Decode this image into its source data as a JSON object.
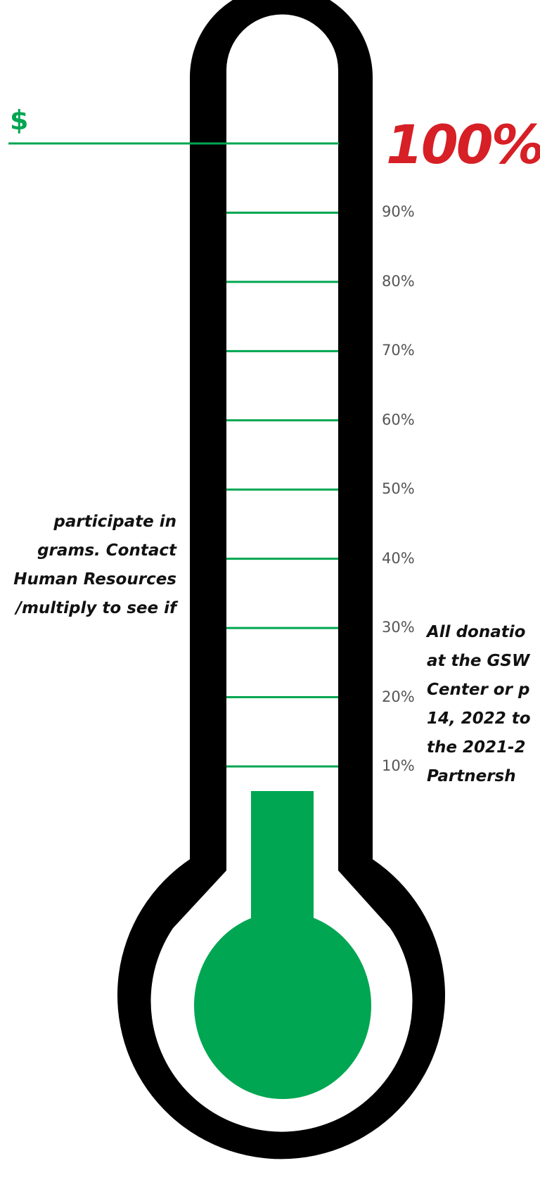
{
  "goal": {
    "symbol": "$",
    "percent_label": "100%"
  },
  "progress_fraction": 0.0,
  "ticks": [
    {
      "label": "90%",
      "value": 90
    },
    {
      "label": "80%",
      "value": 80
    },
    {
      "label": "70%",
      "value": 70
    },
    {
      "label": "60%",
      "value": 60
    },
    {
      "label": "50%",
      "value": 50
    },
    {
      "label": "40%",
      "value": 40
    },
    {
      "label": "30%",
      "value": 30
    },
    {
      "label": "20%",
      "value": 20
    },
    {
      "label": "10%",
      "value": 10
    }
  ],
  "notes": {
    "left_lines": [
      "participate in",
      "grams. Contact",
      "Human Resources",
      "/multiply to see if"
    ],
    "right_lines": [
      "All donatio",
      "at the GSW",
      "Center or p",
      "14, 2022 to",
      "the 2021-2",
      "Partnersh"
    ]
  },
  "colors": {
    "fill": "#00a651",
    "outline": "#000000",
    "goal_percent": "#d71f26",
    "tick_label": "#555555"
  }
}
